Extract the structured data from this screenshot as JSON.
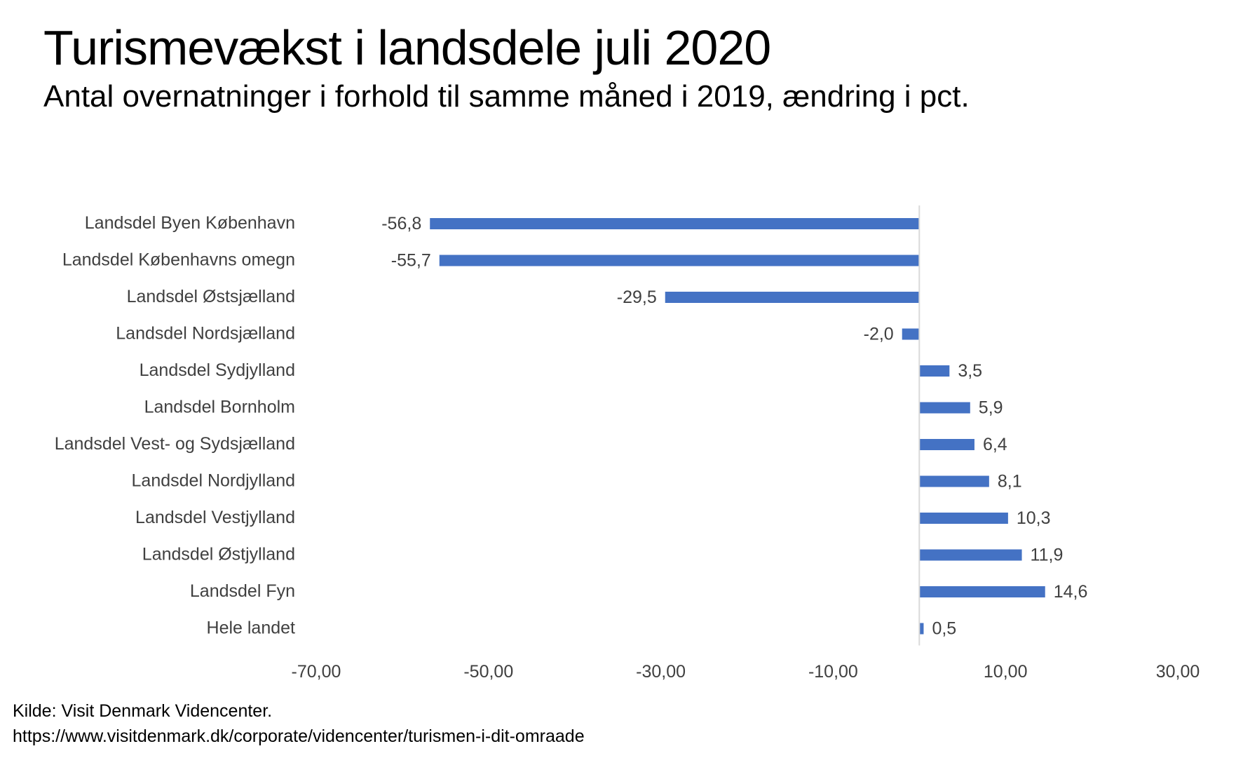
{
  "title": "Turismevækst i landsdele juli 2020",
  "subtitle": "Antal overnatninger i forhold til samme måned i 2019, ændring i pct.",
  "source": {
    "line1": "Kilde: Visit Denmark Videncenter.",
    "line2": "https://www.visitdenmark.dk/corporate/videncenter/turismen-i-dit-omraade"
  },
  "colors": {
    "bar": "#4472C4",
    "axis": "#D9D9D9"
  },
  "chart_data": {
    "type": "bar",
    "orientation": "horizontal",
    "categories": [
      "Landsdel Byen København",
      "Landsdel Københavns omegn",
      "Landsdel Østsjælland",
      "Landsdel Nordsjælland",
      "Landsdel Sydjylland",
      "Landsdel Bornholm",
      "Landsdel Vest- og Sydsjælland",
      "Landsdel Nordjylland",
      "Landsdel Vestjylland",
      "Landsdel Østjylland",
      "Landsdel Fyn",
      "Hele landet"
    ],
    "values": [
      -56.8,
      -55.7,
      -29.5,
      -2.0,
      3.5,
      5.9,
      6.4,
      8.1,
      10.3,
      11.9,
      14.6,
      0.5
    ],
    "value_labels": [
      "-56,8",
      "-55,7",
      "-29,5",
      "-2,0",
      "3,5",
      "5,9",
      "6,4",
      "8,1",
      "10,3",
      "11,9",
      "14,6",
      "0,5"
    ],
    "xlim": [
      -70,
      30
    ],
    "x_ticks": [
      -70,
      -50,
      -30,
      -10,
      10,
      30
    ],
    "x_tick_labels": [
      "-70,00",
      "-50,00",
      "-30,00",
      "-10,00",
      "10,00",
      "30,00"
    ],
    "grid": false,
    "legend": "none"
  }
}
